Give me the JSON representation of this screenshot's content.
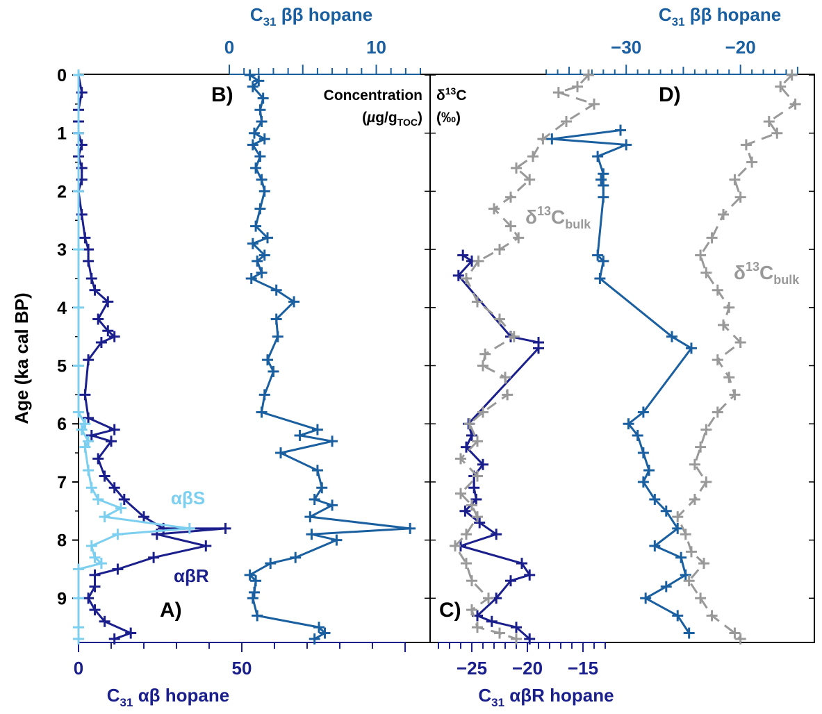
{
  "colors": {
    "dark_blue": "#1a1f8c",
    "mid_blue": "#1a5fa0",
    "light_blue": "#7dcff0",
    "gray": "#999999",
    "black": "#000000"
  },
  "labels": {
    "y_axis": "Age (ka cal BP)",
    "bottom_left_axis": "C31 αβ hopane",
    "bottom_right_axis": "C31 αβR  hopane",
    "top_left_axis": "C31 ββ hopane",
    "top_right_axis": "C31 ββ hopane",
    "panel_a": "A)",
    "panel_b": "B)",
    "panel_c": "C)",
    "panel_d": "D)",
    "concentration": "Concentration",
    "concentration_unit": "(µg/gTOC)",
    "delta_13c": "δ13C",
    "permil": "(‰)",
    "alpha_beta_s": "αβS",
    "alpha_beta_r": "αβR",
    "delta_bulk": "δ13Cbulk"
  },
  "chart_data": [
    {
      "type": "line",
      "panel": "A",
      "xlabel": "C31 αβ hopane",
      "ylabel": "Age (ka cal BP)",
      "xlim": [
        0,
        100
      ],
      "ylim": [
        9.75,
        0
      ],
      "x_ticks": [
        0,
        50
      ],
      "y_ticks": [
        0,
        1,
        2,
        3,
        4,
        5,
        6,
        7,
        8,
        9
      ],
      "series": [
        {
          "name": "αβR",
          "color": "#1a1f8c",
          "points": [
            [
              0,
              0.0
            ],
            [
              1,
              0.3
            ],
            [
              0,
              0.6
            ],
            [
              0,
              0.8
            ],
            [
              0,
              1.0
            ],
            [
              1,
              1.2
            ],
            [
              0,
              1.4
            ],
            [
              1,
              1.6
            ],
            [
              1,
              1.8
            ],
            [
              0,
              2.0
            ],
            [
              1,
              2.4
            ],
            [
              2,
              2.8
            ],
            [
              3,
              3.0
            ],
            [
              3,
              3.2
            ],
            [
              4,
              3.5
            ],
            [
              5,
              3.7
            ],
            [
              9,
              3.9
            ],
            [
              6,
              4.2
            ],
            [
              9,
              4.4
            ],
            [
              11,
              4.5
            ],
            [
              7,
              4.6
            ],
            [
              3,
              4.9
            ],
            [
              2,
              5.5
            ],
            [
              3,
              5.9
            ],
            [
              11,
              6.1
            ],
            [
              4,
              6.2
            ],
            [
              10,
              6.3
            ],
            [
              6,
              6.6
            ],
            [
              8,
              6.9
            ],
            [
              11,
              7.1
            ],
            [
              14,
              7.3
            ],
            [
              20,
              7.6
            ],
            [
              26,
              7.8
            ],
            [
              45,
              7.8
            ],
            [
              24,
              7.9
            ],
            [
              39,
              8.1
            ],
            [
              23,
              8.3
            ],
            [
              12,
              8.5
            ],
            [
              5,
              8.6
            ],
            [
              5,
              8.8
            ],
            [
              3,
              9.0
            ],
            [
              5,
              9.2
            ],
            [
              8,
              9.4
            ],
            [
              16,
              9.6
            ],
            [
              11,
              9.7
            ]
          ]
        },
        {
          "name": "αβS",
          "color": "#7dcff0",
          "points": [
            [
              0,
              0.0
            ],
            [
              0,
              1.0
            ],
            [
              0,
              2.0
            ],
            [
              0,
              3.0
            ],
            [
              0,
              4.0
            ],
            [
              0,
              5.0
            ],
            [
              0,
              5.8
            ],
            [
              2,
              6.0
            ],
            [
              1,
              6.1
            ],
            [
              3,
              6.3
            ],
            [
              2,
              6.4
            ],
            [
              3,
              6.8
            ],
            [
              4,
              7.1
            ],
            [
              6,
              7.3
            ],
            [
              13,
              7.45
            ],
            [
              8,
              7.6
            ],
            [
              34,
              7.8
            ],
            [
              12,
              7.9
            ],
            [
              4,
              8.1
            ],
            [
              5,
              8.3
            ],
            [
              7,
              8.4
            ],
            [
              0,
              8.5
            ],
            [
              0,
              9.0
            ],
            [
              0,
              9.5
            ],
            [
              0,
              9.7
            ]
          ]
        }
      ]
    },
    {
      "type": "line",
      "panel": "B",
      "xlabel": "C31 ββ hopane",
      "xlim": [
        0,
        13
      ],
      "x_ticks": [
        0,
        10
      ],
      "ylim": [
        9.75,
        0
      ],
      "series": [
        {
          "name": "",
          "color": "#1a5fa0",
          "points": [
            [
              1.4,
              0.0
            ],
            [
              2.0,
              0.1
            ],
            [
              1.6,
              0.2
            ],
            [
              2.3,
              0.4
            ],
            [
              2.1,
              0.6
            ],
            [
              2.2,
              0.8
            ],
            [
              1.7,
              1.0
            ],
            [
              2.4,
              1.1
            ],
            [
              1.6,
              1.2
            ],
            [
              2.1,
              1.4
            ],
            [
              1.8,
              1.6
            ],
            [
              2.2,
              1.8
            ],
            [
              2.4,
              2.0
            ],
            [
              2.1,
              2.3
            ],
            [
              1.8,
              2.6
            ],
            [
              2.6,
              2.8
            ],
            [
              1.6,
              2.9
            ],
            [
              2.4,
              3.1
            ],
            [
              1.9,
              3.2
            ],
            [
              2.2,
              3.4
            ],
            [
              1.5,
              3.5
            ],
            [
              3.2,
              3.7
            ],
            [
              4.4,
              3.9
            ],
            [
              3.2,
              4.2
            ],
            [
              3.3,
              4.5
            ],
            [
              2.6,
              4.9
            ],
            [
              3.0,
              5.1
            ],
            [
              2.4,
              5.5
            ],
            [
              2.2,
              5.8
            ],
            [
              6.0,
              6.1
            ],
            [
              4.8,
              6.2
            ],
            [
              7.0,
              6.3
            ],
            [
              3.5,
              6.5
            ],
            [
              6.0,
              6.8
            ],
            [
              6.3,
              7.1
            ],
            [
              5.8,
              7.3
            ],
            [
              7.0,
              7.4
            ],
            [
              5.5,
              7.6
            ],
            [
              12.3,
              7.8
            ],
            [
              5.6,
              7.9
            ],
            [
              7.3,
              8.0
            ],
            [
              4.5,
              8.3
            ],
            [
              2.8,
              8.4
            ],
            [
              1.4,
              8.6
            ],
            [
              1.8,
              8.7
            ],
            [
              1.7,
              8.9
            ],
            [
              1.6,
              9.0
            ],
            [
              1.9,
              9.3
            ],
            [
              6.1,
              9.5
            ],
            [
              6.5,
              9.6
            ],
            [
              5.8,
              9.7
            ]
          ]
        }
      ]
    },
    {
      "type": "line",
      "panel": "C",
      "xlabel": "C31 αβR  hopane",
      "xlim": [
        -28.5,
        -9.5
      ],
      "x_ticks": [
        -25,
        -20,
        -15
      ],
      "ylim": [
        9.75,
        0
      ],
      "series": [
        {
          "name": "",
          "color": "#1a1f8c",
          "points": [
            [
              -25.8,
              3.1
            ],
            [
              -25.0,
              3.2
            ],
            [
              -26.2,
              3.45
            ],
            [
              -21.5,
              4.5
            ],
            [
              -19.0,
              4.6
            ],
            [
              -19.0,
              4.7
            ],
            [
              -25.3,
              6.0
            ],
            [
              -25.0,
              6.2
            ],
            [
              -25.5,
              6.4
            ],
            [
              -24.0,
              6.7
            ],
            [
              -24.8,
              6.9
            ],
            [
              -24.8,
              7.1
            ],
            [
              -24.6,
              7.3
            ],
            [
              -25.6,
              7.5
            ],
            [
              -24.3,
              7.7
            ],
            [
              -22.8,
              7.9
            ],
            [
              -26.0,
              8.1
            ],
            [
              -20.5,
              8.4
            ],
            [
              -19.8,
              8.6
            ],
            [
              -21.5,
              8.7
            ],
            [
              -22.8,
              9.0
            ],
            [
              -24.5,
              9.3
            ],
            [
              -23.2,
              9.4
            ],
            [
              -21.0,
              9.5
            ],
            [
              -19.8,
              9.7
            ]
          ]
        },
        {
          "name": "δ13Cbulk",
          "color": "#999999",
          "points": [
            [
              -14.5,
              0.0
            ],
            [
              -15.5,
              0.2
            ],
            [
              -17.2,
              0.3
            ],
            [
              -14.0,
              0.5
            ],
            [
              -16.5,
              0.8
            ],
            [
              -18.6,
              1.1
            ],
            [
              -19.5,
              1.4
            ],
            [
              -21.0,
              1.6
            ],
            [
              -19.8,
              1.8
            ],
            [
              -21.5,
              2.1
            ],
            [
              -23.0,
              2.3
            ],
            [
              -21.5,
              2.6
            ],
            [
              -20.8,
              2.8
            ],
            [
              -22.5,
              3.0
            ],
            [
              -24.4,
              3.2
            ],
            [
              -25.5,
              3.5
            ],
            [
              -24.5,
              3.9
            ],
            [
              -22.5,
              4.2
            ],
            [
              -21.2,
              4.5
            ],
            [
              -23.8,
              4.8
            ],
            [
              -24.0,
              5.0
            ],
            [
              -22.0,
              5.2
            ],
            [
              -21.8,
              5.5
            ],
            [
              -24.0,
              5.8
            ],
            [
              -25.2,
              6.0
            ],
            [
              -24.5,
              6.3
            ],
            [
              -26.0,
              6.6
            ],
            [
              -24.5,
              6.9
            ],
            [
              -26.0,
              7.2
            ],
            [
              -25.0,
              7.4
            ],
            [
              -24.5,
              7.6
            ],
            [
              -25.5,
              7.9
            ],
            [
              -26.5,
              8.1
            ],
            [
              -25.5,
              8.4
            ],
            [
              -25.0,
              8.7
            ],
            [
              -23.5,
              9.0
            ],
            [
              -25.0,
              9.2
            ],
            [
              -24.5,
              9.5
            ],
            [
              -22.5,
              9.6
            ],
            [
              -21.0,
              9.7
            ]
          ]
        }
      ]
    },
    {
      "type": "line",
      "panel": "D",
      "xlabel": "C31 ββ hopane",
      "xlim": [
        -39.5,
        -12.5
      ],
      "x_ticks": [
        -30,
        -20
      ],
      "ylim": [
        9.75,
        0
      ],
      "series": [
        {
          "name": "",
          "color": "#1a5fa0",
          "points": [
            [
              -30.5,
              0.95
            ],
            [
              -36.5,
              1.1
            ],
            [
              -30.0,
              1.2
            ],
            [
              -32.5,
              1.4
            ],
            [
              -32.0,
              1.7
            ],
            [
              -32.2,
              1.8
            ],
            [
              -32.0,
              1.9
            ],
            [
              -32.0,
              2.1
            ],
            [
              -32.5,
              3.1
            ],
            [
              -32.0,
              3.2
            ],
            [
              -32.3,
              3.5
            ],
            [
              -26.0,
              4.5
            ],
            [
              -24.3,
              4.7
            ],
            [
              -28.5,
              5.8
            ],
            [
              -29.8,
              6.0
            ],
            [
              -29.0,
              6.2
            ],
            [
              -28.5,
              6.5
            ],
            [
              -28.0,
              6.8
            ],
            [
              -28.5,
              7.0
            ],
            [
              -27.5,
              7.3
            ],
            [
              -26.5,
              7.5
            ],
            [
              -25.5,
              7.8
            ],
            [
              -27.5,
              8.1
            ],
            [
              -25.2,
              8.3
            ],
            [
              -24.8,
              8.6
            ],
            [
              -26.5,
              8.8
            ],
            [
              -28.3,
              9.0
            ],
            [
              -25.5,
              9.3
            ],
            [
              -24.5,
              9.6
            ]
          ]
        },
        {
          "name": "δ13Cbulk",
          "color": "#999999",
          "points": [
            [
              -15.5,
              0.0
            ],
            [
              -16.5,
              0.2
            ],
            [
              -15.2,
              0.5
            ],
            [
              -17.5,
              0.8
            ],
            [
              -16.8,
              1.0
            ],
            [
              -19.5,
              1.2
            ],
            [
              -19.0,
              1.5
            ],
            [
              -20.5,
              1.8
            ],
            [
              -20.0,
              2.1
            ],
            [
              -21.5,
              2.4
            ],
            [
              -22.5,
              2.8
            ],
            [
              -23.5,
              3.1
            ],
            [
              -23.0,
              3.4
            ],
            [
              -22.0,
              3.7
            ],
            [
              -21.0,
              4.0
            ],
            [
              -21.5,
              4.3
            ],
            [
              -20.0,
              4.6
            ],
            [
              -22.0,
              4.9
            ],
            [
              -21.0,
              5.2
            ],
            [
              -20.5,
              5.5
            ],
            [
              -22.0,
              5.8
            ],
            [
              -23.0,
              6.1
            ],
            [
              -23.5,
              6.4
            ],
            [
              -24.0,
              6.7
            ],
            [
              -23.0,
              7.0
            ],
            [
              -24.0,
              7.3
            ],
            [
              -25.5,
              7.6
            ],
            [
              -24.8,
              7.9
            ],
            [
              -24.3,
              8.2
            ],
            [
              -23.2,
              8.4
            ],
            [
              -24.5,
              8.7
            ],
            [
              -23.5,
              9.0
            ],
            [
              -22.5,
              9.3
            ],
            [
              -20.5,
              9.6
            ],
            [
              -20.0,
              9.7
            ]
          ]
        }
      ]
    }
  ]
}
